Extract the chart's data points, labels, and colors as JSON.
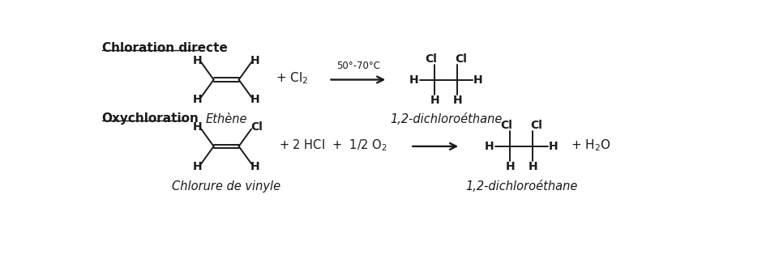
{
  "bg_color": "#ffffff",
  "text_color": "#1a1a1a",
  "section1_label": "Chloration directe",
  "section2_label": "Oxychloration",
  "ethene_label": "Ethène",
  "vinyl_label": "Chlorure de vinyle",
  "dce_label": "1,2-dichloroéthane",
  "dce_label2": "1,2-dichloroéthane",
  "condition_text": "50°-70°C",
  "font_size_section": 11,
  "font_size_atom": 10,
  "font_size_label": 10,
  "line_width": 1.4,
  "figsize": [
    9.62,
    3.14
  ],
  "dpi": 100
}
